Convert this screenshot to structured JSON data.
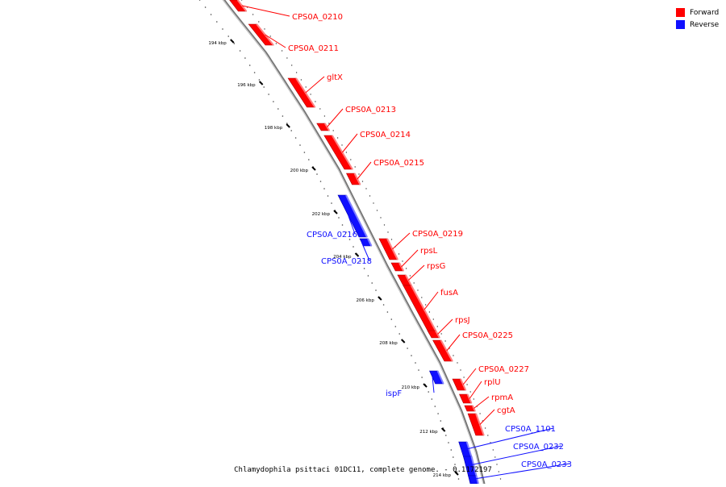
{
  "legend": {
    "items": [
      {
        "label": "Forward",
        "color": "#ff0000"
      },
      {
        "label": "Reverse",
        "color": "#1010ff"
      }
    ]
  },
  "caption": "Chlamydophila psittaci 01DC11, complete genome. - 0.1172197",
  "colors": {
    "forward": "#ff0000",
    "reverse": "#1010ff",
    "backbone": "#888888"
  },
  "scale": {
    "ticks": [
      "194 kbp",
      "196 kbp",
      "198 kbp",
      "200 kbp",
      "202 kbp",
      "204 kbp",
      "206 kbp",
      "208 kbp",
      "210 kbp",
      "212 kbp",
      "214 kbp"
    ]
  },
  "genes": [
    {
      "name": "CPS0A_0210",
      "strand": "forward"
    },
    {
      "name": "CPS0A_0211",
      "strand": "forward"
    },
    {
      "name": "gltX",
      "strand": "forward"
    },
    {
      "name": "CPS0A_0213",
      "strand": "forward"
    },
    {
      "name": "CPS0A_0214",
      "strand": "forward"
    },
    {
      "name": "CPS0A_0215",
      "strand": "forward"
    },
    {
      "name": "CPS0A_0216",
      "strand": "reverse"
    },
    {
      "name": "CPS0A_0218",
      "strand": "reverse"
    },
    {
      "name": "CPS0A_0219",
      "strand": "forward"
    },
    {
      "name": "rpsL",
      "strand": "forward"
    },
    {
      "name": "rpsG",
      "strand": "forward"
    },
    {
      "name": "fusA",
      "strand": "forward"
    },
    {
      "name": "rpsJ",
      "strand": "forward"
    },
    {
      "name": "CPS0A_0225",
      "strand": "forward"
    },
    {
      "name": "ispF",
      "strand": "reverse"
    },
    {
      "name": "CPS0A_0227",
      "strand": "forward"
    },
    {
      "name": "rplU",
      "strand": "forward"
    },
    {
      "name": "rpmA",
      "strand": "forward"
    },
    {
      "name": "cgtA",
      "strand": "forward"
    },
    {
      "name": "CPS0A_1101",
      "strand": "reverse"
    },
    {
      "name": "CPS0A_0232",
      "strand": "reverse"
    },
    {
      "name": "CPS0A_0233",
      "strand": "reverse"
    }
  ]
}
